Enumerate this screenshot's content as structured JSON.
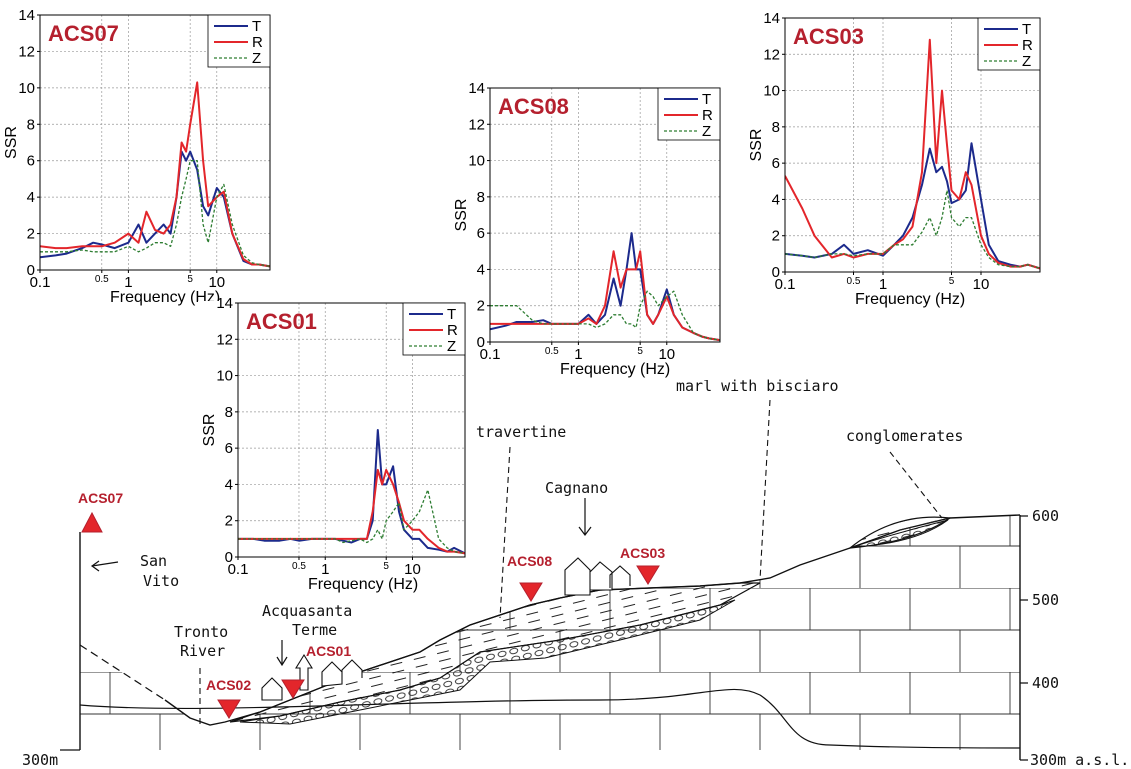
{
  "chart_data": [
    {
      "type": "line",
      "title": "ACS07",
      "title_color": "#b5202e",
      "xlabel": "Frequency (Hz)",
      "ylabel": "SSR",
      "log_x": true,
      "grid": true,
      "legend": "upper right",
      "xlim": [
        0.1,
        40
      ],
      "ylim": [
        0,
        14
      ],
      "xticks": [
        0.1,
        0.5,
        1,
        5,
        10
      ],
      "yticks": [
        0,
        2,
        4,
        6,
        8,
        10,
        12,
        14
      ],
      "x": [
        0.1,
        0.15,
        0.2,
        0.3,
        0.4,
        0.5,
        0.7,
        1,
        1.3,
        1.6,
        2,
        2.5,
        3,
        3.5,
        4,
        4.5,
        5,
        6,
        7,
        8,
        10,
        12,
        15,
        20,
        25,
        30,
        40
      ],
      "series": [
        {
          "name": "T",
          "color": "#1c2a8c",
          "line_style": "solid",
          "values": [
            0.7,
            0.8,
            0.9,
            1.2,
            1.5,
            1.4,
            1.2,
            1.5,
            2.5,
            1.5,
            2,
            2.5,
            2,
            4,
            6.5,
            6,
            6.5,
            5.5,
            3.5,
            3,
            4.5,
            4,
            2,
            0.5,
            0.3,
            0.3,
            0.2
          ]
        },
        {
          "name": "R",
          "color": "#e3262b",
          "line_style": "solid",
          "values": [
            1.3,
            1.2,
            1.2,
            1.3,
            1.3,
            1.3,
            1.5,
            2,
            1.5,
            3.2,
            2.2,
            2,
            2.5,
            4,
            7,
            6.5,
            8,
            10.3,
            6,
            3.5,
            4,
            4.3,
            2,
            0.6,
            0.3,
            0.3,
            0.2
          ]
        },
        {
          "name": "Z",
          "color": "#2e7d32",
          "line_style": "dotted",
          "values": [
            1,
            1,
            1,
            1.1,
            1,
            1,
            1,
            1.3,
            1,
            1.2,
            1.5,
            1.5,
            1.3,
            2.5,
            4,
            5,
            6,
            6,
            2.5,
            1.5,
            4,
            4.7,
            2.5,
            0.8,
            0.4,
            0.3,
            0.2
          ]
        }
      ]
    },
    {
      "type": "line",
      "title": "ACS08",
      "title_color": "#b5202e",
      "xlabel": "Frequency (Hz)",
      "ylabel": "SSR",
      "log_x": true,
      "grid": true,
      "legend": "upper right",
      "xlim": [
        0.1,
        40
      ],
      "ylim": [
        0,
        14
      ],
      "xticks": [
        0.1,
        0.5,
        1,
        5,
        10
      ],
      "yticks": [
        0,
        2,
        4,
        6,
        8,
        10,
        12,
        14
      ],
      "x": [
        0.1,
        0.15,
        0.2,
        0.3,
        0.4,
        0.5,
        0.7,
        1,
        1.3,
        1.6,
        2,
        2.5,
        3,
        3.5,
        4,
        4.5,
        5,
        6,
        7,
        8,
        10,
        12,
        15,
        20,
        25,
        30,
        40
      ],
      "series": [
        {
          "name": "T",
          "color": "#1c2a8c",
          "line_style": "solid",
          "values": [
            0.7,
            0.9,
            1.1,
            1.1,
            1.2,
            1,
            1,
            1,
            1.5,
            1,
            1.5,
            3.5,
            2,
            4,
            6,
            4,
            4,
            1.5,
            1,
            1.5,
            2.9,
            1.5,
            0.8,
            0.5,
            0.3,
            0.2,
            0.1
          ]
        },
        {
          "name": "R",
          "color": "#e3262b",
          "line_style": "solid",
          "values": [
            1,
            1,
            1,
            1,
            1,
            1,
            1,
            1,
            1.3,
            1,
            2,
            5,
            3,
            4,
            4,
            4,
            5,
            1.5,
            1,
            1.5,
            2.5,
            1.5,
            0.8,
            0.5,
            0.3,
            0.2,
            0.1
          ]
        },
        {
          "name": "Z",
          "color": "#2e7d32",
          "line_style": "dotted",
          "values": [
            2,
            2,
            2,
            1.2,
            1,
            1,
            1,
            1,
            1,
            0.8,
            1,
            1.5,
            1.5,
            1,
            1,
            0.8,
            2,
            2.8,
            2.5,
            2,
            2.5,
            2.8,
            1.5,
            0.5,
            0.3,
            0.2,
            0.1
          ]
        }
      ]
    },
    {
      "type": "line",
      "title": "ACS03",
      "title_color": "#b5202e",
      "xlabel": "Frequency (Hz)",
      "ylabel": "SSR",
      "log_x": true,
      "grid": true,
      "legend": "upper right",
      "xlim": [
        0.1,
        40
      ],
      "ylim": [
        0,
        14
      ],
      "xticks": [
        0.1,
        0.5,
        1,
        5,
        10
      ],
      "yticks": [
        0,
        2,
        4,
        6,
        8,
        10,
        12,
        14
      ],
      "x": [
        0.1,
        0.15,
        0.2,
        0.3,
        0.4,
        0.5,
        0.7,
        1,
        1.3,
        1.6,
        2,
        2.5,
        3,
        3.5,
        4,
        4.5,
        5,
        6,
        7,
        8,
        10,
        12,
        15,
        20,
        25,
        30,
        40
      ],
      "series": [
        {
          "name": "T",
          "color": "#1c2a8c",
          "line_style": "solid",
          "values": [
            1,
            0.9,
            0.8,
            1,
            1.5,
            1,
            1.2,
            0.9,
            1.5,
            2,
            3,
            4.8,
            6.8,
            5.5,
            5.8,
            5,
            3.8,
            4,
            4.5,
            7.1,
            4,
            1.5,
            0.6,
            0.4,
            0.3,
            0.4,
            0.2
          ]
        },
        {
          "name": "R",
          "color": "#e3262b",
          "line_style": "solid",
          "values": [
            5.3,
            3.5,
            2,
            0.8,
            1,
            0.8,
            1,
            1,
            1.5,
            1.8,
            2.5,
            5.5,
            12.8,
            6,
            10,
            7,
            4.5,
            4,
            5.5,
            4.8,
            2,
            1,
            0.5,
            0.3,
            0.3,
            0.4,
            0.2
          ]
        },
        {
          "name": "Z",
          "color": "#2e7d32",
          "line_style": "dotted",
          "values": [
            1,
            0.9,
            0.8,
            1,
            1,
            0.9,
            1,
            1,
            1.5,
            1.5,
            1.5,
            2.2,
            3,
            2,
            3,
            4.5,
            3,
            2.5,
            3,
            3,
            1.5,
            0.8,
            0.4,
            0.3,
            0.3,
            0.4,
            0.2
          ]
        }
      ]
    },
    {
      "type": "line",
      "title": "ACS01",
      "title_color": "#b5202e",
      "xlabel": "Frequency (Hz)",
      "ylabel": "SSR",
      "log_x": true,
      "grid": true,
      "legend": "upper right",
      "xlim": [
        0.1,
        40
      ],
      "ylim": [
        0,
        14
      ],
      "xticks": [
        0.1,
        0.5,
        1,
        5,
        10
      ],
      "yticks": [
        0,
        2,
        4,
        6,
        8,
        10,
        12,
        14
      ],
      "x": [
        0.1,
        0.15,
        0.2,
        0.3,
        0.4,
        0.5,
        0.7,
        1,
        1.3,
        1.6,
        2,
        2.5,
        3,
        3.5,
        4,
        4.5,
        5,
        6,
        7,
        8,
        10,
        12,
        15,
        20,
        25,
        30,
        40
      ],
      "series": [
        {
          "name": "T",
          "color": "#1c2a8c",
          "line_style": "solid",
          "values": [
            1,
            1,
            0.9,
            0.9,
            1,
            0.9,
            1,
            1,
            1,
            0.9,
            0.8,
            1,
            1,
            2,
            7,
            4,
            4,
            5,
            2.5,
            1.5,
            1,
            1,
            0.5,
            0.4,
            0.3,
            0.5,
            0.2
          ]
        },
        {
          "name": "R",
          "color": "#e3262b",
          "line_style": "solid",
          "values": [
            1,
            1,
            1,
            1,
            1,
            1,
            1,
            1,
            1,
            1,
            1,
            1,
            1,
            2.5,
            4.8,
            4,
            4.8,
            4,
            3,
            2,
            1.5,
            1.5,
            1,
            0.5,
            0.3,
            0.3,
            0.2
          ]
        },
        {
          "name": "Z",
          "color": "#2e7d32",
          "line_style": "dotted",
          "values": [
            1,
            1,
            1,
            1,
            1,
            1,
            1,
            1,
            1,
            0.8,
            0.9,
            1,
            0.8,
            1,
            1.5,
            1,
            2,
            2.5,
            3,
            1.5,
            2,
            2.5,
            3.7,
            1,
            0.5,
            0.3,
            0.2
          ]
        }
      ]
    }
  ],
  "diagram": {
    "stations": [
      "ACS07",
      "ACS02",
      "ACS01",
      "ACS08",
      "ACS03"
    ],
    "places": [
      [
        "San",
        "Vito"
      ],
      [
        "Tronto",
        "River"
      ],
      [
        "Acquasanta",
        "Terme"
      ],
      [
        "Cagnano"
      ]
    ],
    "units": [
      "travertine",
      "marl with bisciaro",
      "conglomerates"
    ],
    "elevations": [
      "600",
      "500",
      "400"
    ],
    "base_left": "300m",
    "base_right": "300m a.s.l."
  }
}
